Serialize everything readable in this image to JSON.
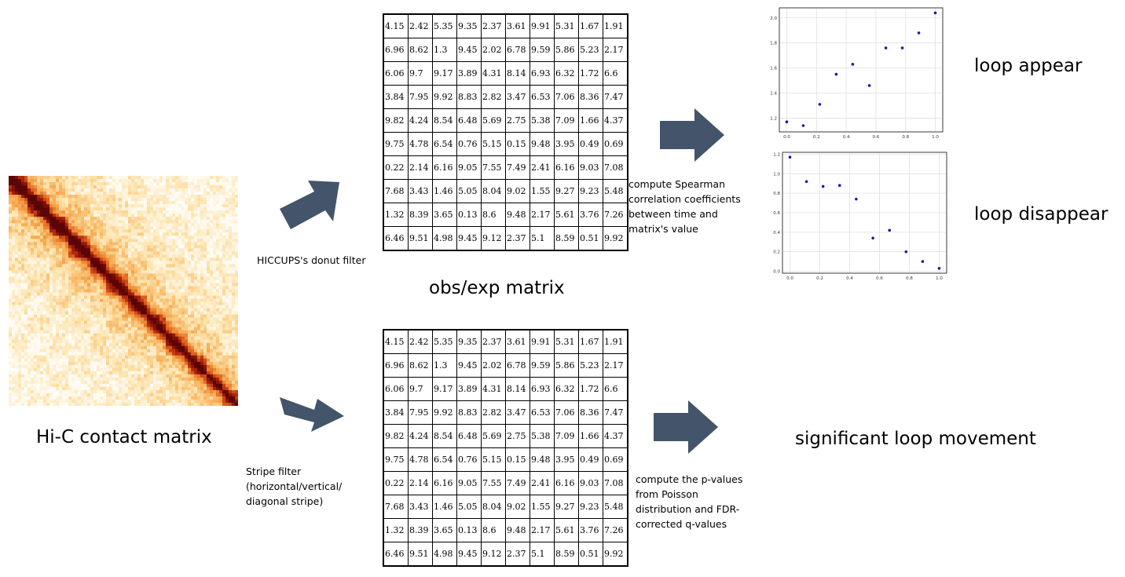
{
  "labels": {
    "hic_title": "Hi-C contact matrix",
    "obs_exp_title": "obs/exp matrix",
    "donut_filter": "HICCUPS's donut filter",
    "stripe_filter": [
      "Stripe filter",
      "(horizontal/vertical/",
      "diagonal stripe)"
    ],
    "spearman_note": [
      "compute Spearman",
      "correlation coefficients",
      "between time and",
      "matrix's value"
    ],
    "poisson_note": [
      "compute the p-values",
      "from Poisson",
      "distribution and FDR-",
      "corrected q-values"
    ],
    "loop_appear": "loop appear",
    "loop_disappear": "loop disappear",
    "significant": "significant loop movement"
  },
  "matrix": [
    [
      "4.15",
      "2.42",
      "5.35",
      "9.35",
      "2.37",
      "3.61",
      "9.91",
      "5.31",
      "1.67",
      "1.91"
    ],
    [
      "6.96",
      "8.62",
      "1.3",
      "9.45",
      "2.02",
      "6.78",
      "9.59",
      "5.86",
      "5.23",
      "2.17"
    ],
    [
      "6.06",
      "9.7",
      "9.17",
      "3.89",
      "4.31",
      "8.14",
      "6.93",
      "6.32",
      "1.72",
      "6.6"
    ],
    [
      "3.84",
      "7.95",
      "9.92",
      "8.83",
      "2.82",
      "3.47",
      "6.53",
      "7.06",
      "8.36",
      "7.47"
    ],
    [
      "9.82",
      "4.24",
      "8.54",
      "6.48",
      "5.69",
      "2.75",
      "5.38",
      "7.09",
      "1.66",
      "4.37"
    ],
    [
      "9.75",
      "4.78",
      "6.54",
      "0.76",
      "5.15",
      "0.15",
      "9.48",
      "3.95",
      "0.49",
      "0.69"
    ],
    [
      "0.22",
      "2.14",
      "6.16",
      "9.05",
      "7.55",
      "7.49",
      "2.41",
      "6.16",
      "9.03",
      "7.08"
    ],
    [
      "7.68",
      "3.43",
      "1.46",
      "5.05",
      "8.04",
      "9.02",
      "1.55",
      "9.27",
      "9.23",
      "5.48"
    ],
    [
      "1.32",
      "8.39",
      "3.65",
      "0.13",
      "8.6",
      "9.48",
      "2.17",
      "5.61",
      "3.76",
      "7.26"
    ],
    [
      "6.46",
      "9.51",
      "4.98",
      "9.45",
      "9.12",
      "2.37",
      "5.1",
      "8.59",
      "0.51",
      "9.92"
    ]
  ],
  "colors": {
    "arrow": "#44546a",
    "point": "#1a1aa6",
    "heat_low": "#fff3dc",
    "heat_high": "#c02000",
    "grid": "#e0e0e0"
  },
  "chart_data": [
    {
      "type": "scatter",
      "x": [
        0.0,
        0.111,
        0.222,
        0.333,
        0.444,
        0.556,
        0.667,
        0.778,
        0.889,
        1.0
      ],
      "y": [
        1.17,
        1.14,
        1.31,
        1.55,
        1.63,
        1.46,
        1.76,
        1.76,
        1.88,
        2.04
      ],
      "xlim": [
        -0.05,
        1.05
      ],
      "ylim": [
        1.09,
        2.08
      ],
      "xticks": [
        "0.0",
        "0.2",
        "0.4",
        "0.6",
        "0.8",
        "1.0"
      ],
      "yticks": [
        "1.2",
        "1.4",
        "1.6",
        "1.8",
        "2.0"
      ],
      "ylabel": "y",
      "grid": true
    },
    {
      "type": "scatter",
      "x": [
        0.0,
        0.111,
        0.222,
        0.333,
        0.444,
        0.556,
        0.667,
        0.778,
        0.889,
        1.0
      ],
      "y": [
        1.17,
        0.92,
        0.87,
        0.88,
        0.74,
        0.34,
        0.42,
        0.2,
        0.1,
        0.03
      ],
      "xlim": [
        -0.05,
        1.05
      ],
      "ylim": [
        -0.02,
        1.22
      ],
      "xticks": [
        "0.0",
        "0.2",
        "0.4",
        "0.6",
        "0.8",
        "1.0"
      ],
      "yticks": [
        "0.0",
        "0.2",
        "0.4",
        "0.6",
        "0.8",
        "1.0",
        "1.2"
      ],
      "grid": true
    }
  ]
}
